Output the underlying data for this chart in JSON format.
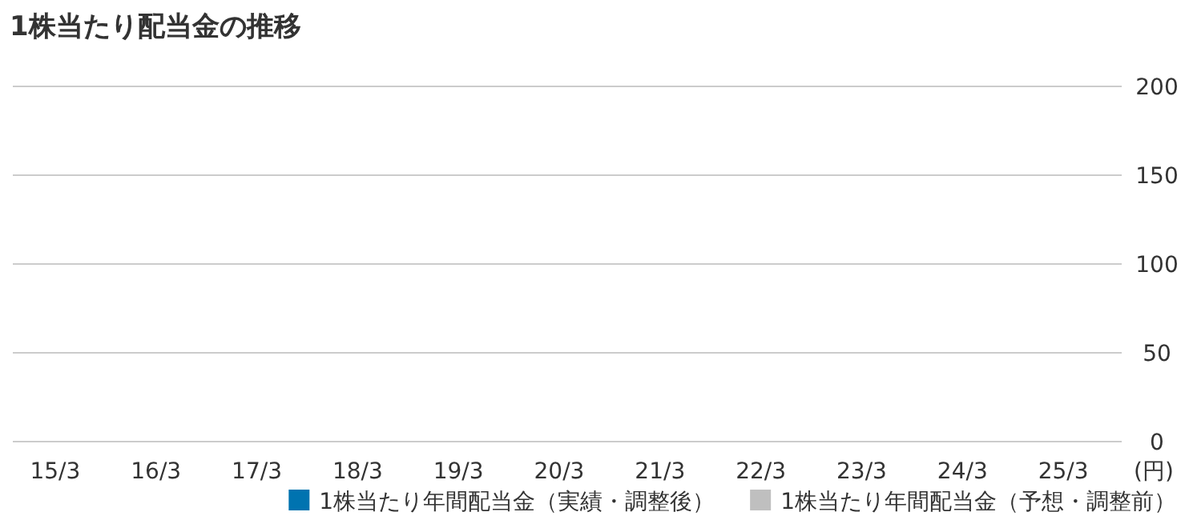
{
  "chart_data": {
    "type": "bar",
    "title": "1株当たり配当金の推移",
    "ylabel": "(円)",
    "categories": [
      "15/3",
      "16/3",
      "17/3",
      "18/3",
      "19/3",
      "20/3",
      "21/3",
      "22/3",
      "23/3",
      "24/3",
      "25/3"
    ],
    "series": [
      {
        "name": "1株当たり年間配当金（実績・調整後）",
        "color": "#0073b0",
        "values": [
          0,
          0,
          0,
          0,
          0,
          0,
          0,
          0,
          0,
          0,
          null
        ]
      },
      {
        "name": "1株当たり年間配当金（予想・調整前）",
        "color": "#bfbfbf",
        "values": [
          null,
          null,
          null,
          null,
          null,
          null,
          null,
          null,
          null,
          null,
          0
        ]
      }
    ],
    "ylim": [
      0,
      200
    ],
    "yticks": [
      0,
      50,
      100,
      150,
      200
    ],
    "grid": "y",
    "legend": "bottom right"
  }
}
